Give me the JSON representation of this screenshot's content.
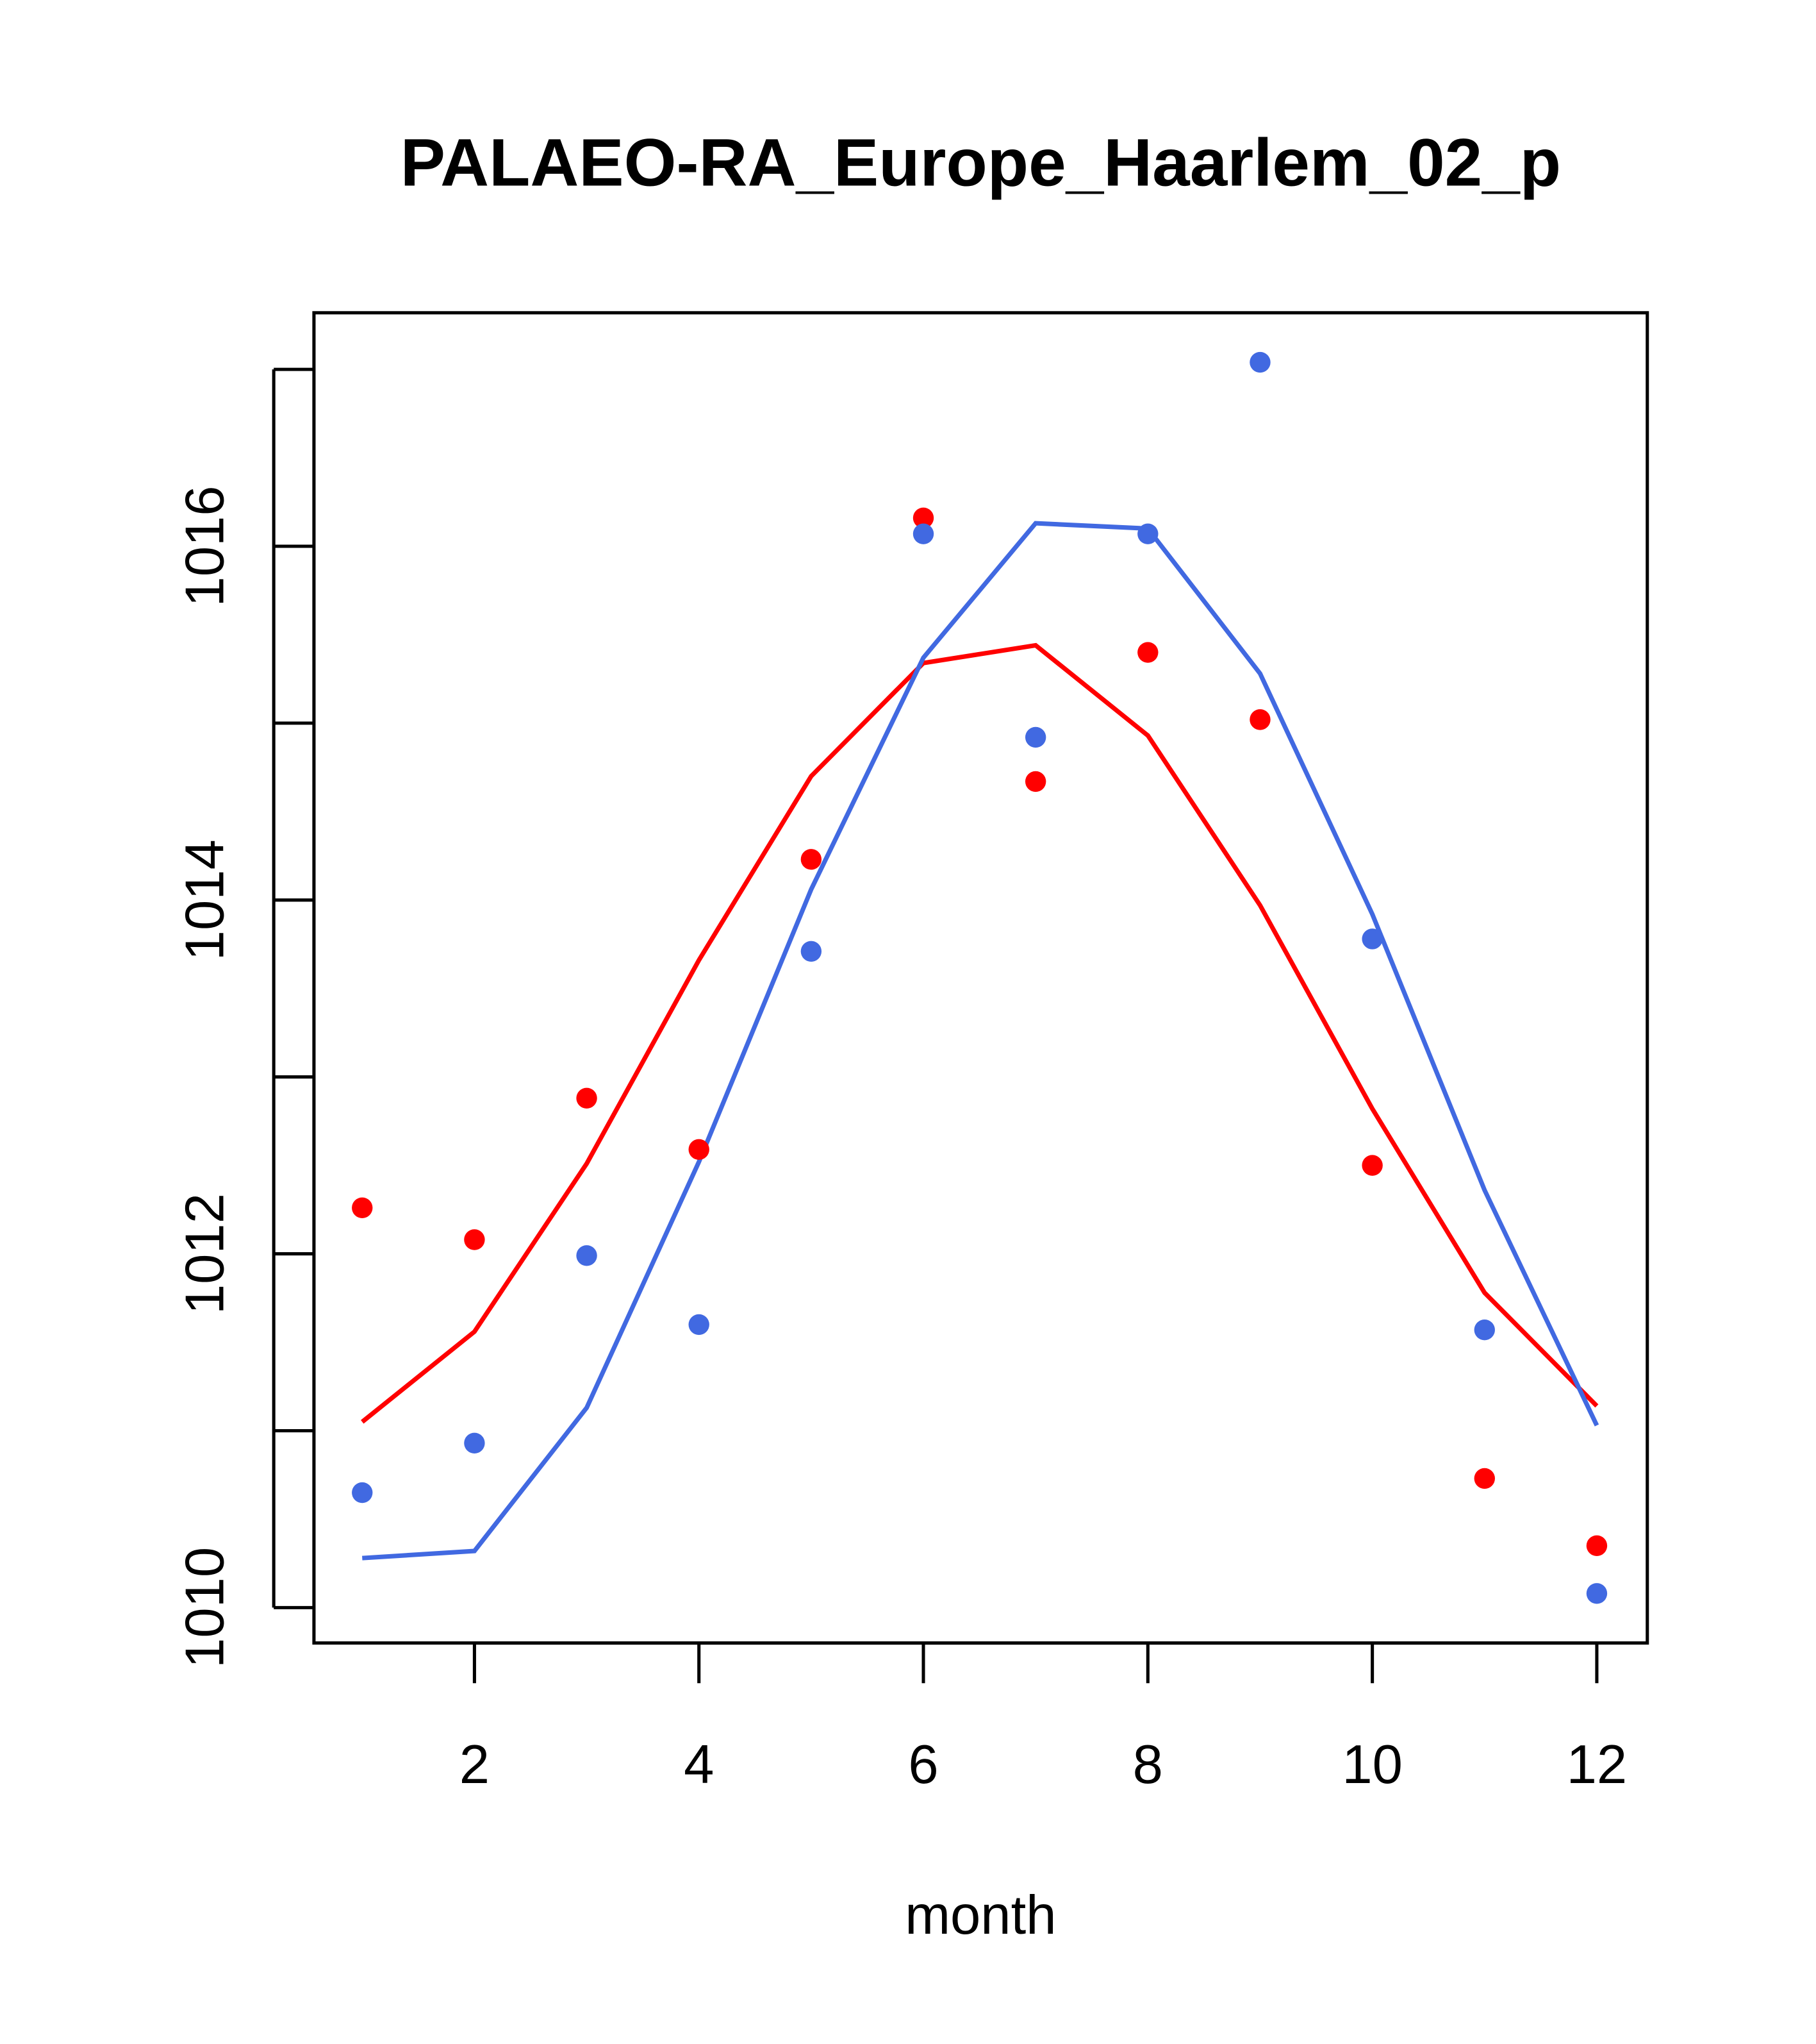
{
  "chart_data": {
    "type": "scatter",
    "title": "PALAEO-RA_Europe_Haarlem_02_p",
    "xlabel": "month",
    "ylabel": "",
    "xlim": [
      0.57,
      12.45
    ],
    "ylim": [
      1009.8,
      1017.32
    ],
    "x_ticks": [
      2,
      4,
      6,
      8,
      10,
      12
    ],
    "x_tick_labels": [
      "2",
      "4",
      "6",
      "8",
      "10",
      "12"
    ],
    "y_ticks": [
      1010,
      1011,
      1012,
      1013,
      1014,
      1015,
      1016,
      1017
    ],
    "y_tick_labels": [
      "1010",
      "",
      "1012",
      "",
      "1014",
      "",
      "1016",
      ""
    ],
    "grid": false,
    "x": [
      1,
      2,
      3,
      4,
      5,
      6,
      7,
      8,
      9,
      10,
      11,
      12
    ],
    "series": [
      {
        "name": "red points",
        "kind": "points",
        "color": "#FF0000",
        "values": [
          1012.26,
          1012.08,
          1012.88,
          1012.59,
          1014.23,
          1016.16,
          1014.67,
          1015.4,
          1015.02,
          1012.5,
          1010.73,
          1010.35
        ]
      },
      {
        "name": "blue points",
        "kind": "points",
        "color": "#4169E1",
        "values": [
          1010.65,
          1010.93,
          1011.99,
          1011.6,
          1013.71,
          1016.07,
          1014.92,
          1016.07,
          1017.04,
          1013.78,
          1011.57,
          1010.08
        ]
      },
      {
        "name": "red line",
        "kind": "line",
        "color": "#FF0000",
        "values": [
          1011.05,
          1011.56,
          1012.51,
          1013.66,
          1014.7,
          1015.34,
          1015.44,
          1014.93,
          1013.97,
          1012.82,
          1011.78,
          1011.14
        ]
      },
      {
        "name": "blue line",
        "kind": "line",
        "color": "#4169E1",
        "values": [
          1010.28,
          1010.32,
          1011.13,
          1012.52,
          1014.06,
          1015.37,
          1016.13,
          1016.1,
          1015.28,
          1013.92,
          1012.36,
          1011.03
        ]
      }
    ]
  }
}
